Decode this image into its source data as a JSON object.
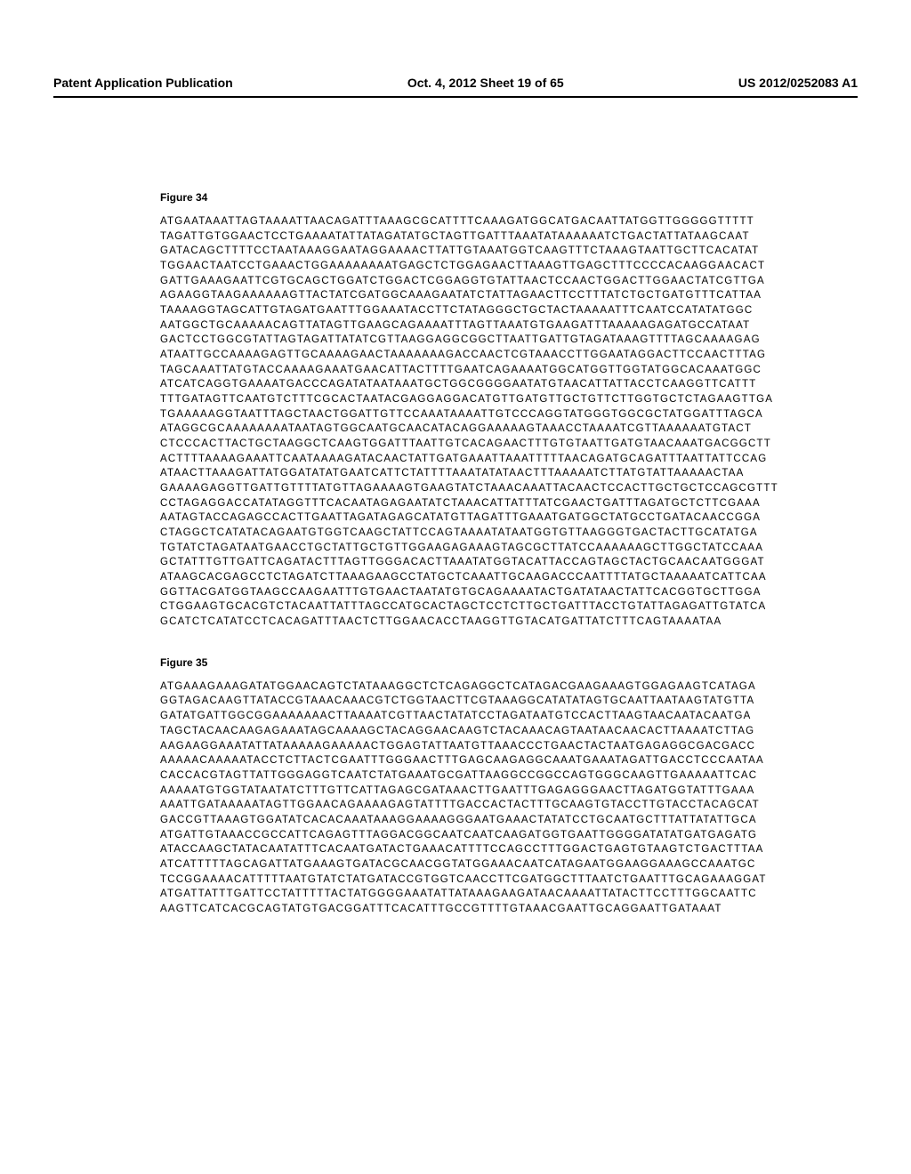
{
  "header": {
    "left": "Patent Application Publication",
    "center": "Oct. 4, 2012   Sheet 19 of 65",
    "right": "US 2012/0252083 A1"
  },
  "figure34": {
    "label": "Figure 34",
    "sequence": [
      "ATGAATAAATTAGTAAAATTAACAGATTTAAAGCGCATTTTCAAAGATGGCATGACAATTATGGTTGGGGGTTTTT",
      "TAGATTGTGGAACTCCTGAAAATATTATAGATATGCTAGTTGATTTAAATATAAAAAATCTGACTATTATAAGCAAT",
      "GATACAGCTTTTCCTAATAAAGGAATAGGAAAACTTATTGTAAATGGTCAAGTTTCTAAAGTAATTGCTTCACATAT",
      "TGGAACTAATCCTGAAACTGGAAAAAAAATGAGCTCTGGAGAACTTAAAGTTGAGCTTTCCCCACAAGGAACACT",
      "GATTGAAAGAATTCGTGCAGCTGGATCTGGACTCGGAGGTGTATTAACTCCAACTGGACTTGGAACTATCGTTGA",
      "AGAAGGTAAGAAAAAAGTTACTATCGATGGCAAAGAATATCTATTAGAACTTCCTTTATCTGCTGATGTTTCATTAA",
      "TAAAAGGTAGCATTGTAGATGAATTTGGAAATACCTTCTATAGGGCTGCTACTAAAAATTTCAATCCATATATGGC",
      "AATGGCTGCAAAAACAGTTATAGTTGAAGCAGAAAATTTAGTTAAATGTGAAGATTTAAAAAGAGATGCCATAAT",
      "GACTCCTGGCGTATTAGTAGATTATATCGTTAAGGAGGCGGCTTAATTGATTGTAGATAAAGTTTTAGCAAAAGAG",
      "ATAATTGCCAAAAGAGTTGCAAAAGAACTAAAAAAAGACCAACTCGTAAACCTTGGAATAGGACTTCCAACTTTAG",
      "TAGCAAATTATGTACCAAAAGAAATGAACATTACTTTTGAATCAGAAAATGGCATGGTTGGTATGGCACAAATGGC",
      "ATCATCAGGTGAAAATGACCCAGATATAATAAATGCTGGCGGGGAATATGTAACATTATTACCTCAAGGTTCATTT",
      "TTTGATAGTTCAATGTCTTTCGCACTAATACGAGGAGGACATGTTGATGTTGCTGTTCTTGGTGCTCTAGAAGTTGA",
      "TGAAAAAGGTAATTTAGCTAACTGGATTGTTCCAAATAAAATTGTCCCAGGTATGGGTGGCGCTATGGATTTAGCA",
      "ATAGGCGCAAAAAAAATAATAGTGGCAATGCAACATACAGGAAAAAGTAAACCTAAAATCGTTAAAAAATGTACT",
      "CTCCCACTTACTGCTAAGGCTCAAGTGGATTTAATTGTCACAGAACTTTGTGTAATTGATGTAACAAATGACGGCTT",
      "ACTTTTAAAAGAAATTCAATAAAAGATACAACTATTGATGAAATTAAATTTTTAACAGATGCAGATTTAATTATTCCAG",
      "ATAACTTAAAGATTATGGATATATGAATCATTCTATTTTAAATATATAACTTTAAAAATCTTATGTATTAAAAACTAA",
      "GAAAAGAGGTTGATTGTTTTATGTTAGAAAAGTGAAGTATCTAAACAAATTACAACTCCACTTGCTGCTCCAGCGTTT",
      "CCTAGAGGACCATATAGGTTTCACAATAGAGAATATCTAAACATTATTTATCGAACTGATTTAGATGCTCTTCGAAA",
      "AATAGTACCAGAGCCACTTGAATTAGATAGAGCATATGTTAGATTTGAAATGATGGCTATGCCTGATACAACCGGA",
      "CTAGGCTCATATACAGAATGTGGTCAAGCTATTCCAGTAAAATATAATGGTGTTAAGGGTGACTACTTGCATATGA",
      "TGTATCTAGATAATGAACCTGCTATTGCTGTTGGAAGAGAAAGTAGCGCTTATCCAAAAAAGCTTGGCTATCCAAA",
      "GCTATTTGTTGATTCAGATACTTTAGTTGGGACACTTAAATATGGTACATTACCAGTAGCTACTGCAACAATGGGAT",
      "ATAAGCACGAGCCTCTAGATCTTAAAGAAGCCTATGCTCAAATTGCAAGACCCAATTTTATGCTAAAAATCATTCAA",
      "GGTTACGATGGTAAGCCAAGAATTTGTGAACTAATATGTGCAGAAAATACTGATATAACTATTCACGGTGCTTGGA",
      "CTGGAAGTGCACGTCTACAATTATTTAGCCATGCACTAGCTCCTCTTGCTGATTTACCTGTATTAGAGATTGTATCA",
      "GCATCTCATATCCTCACAGATTTAACTCTTGGAACACCTAAGGTTGTACATGATTATCTTTCAGTAAAATAA"
    ]
  },
  "figure35": {
    "label": "Figure 35",
    "sequence": [
      "ATGAAAGAAAGATATGGAACAGTCTATAAAGGCTCTCAGAGGCTCATAGACGAAGAAAGTGGAGAAGTCATAGA",
      "GGTAGACAAGTTATACCGTAAACAAACGTCTGGTAACTTCGTAAAGGCATATATAGTGCAATTAATAAGTATGTTA",
      "GATATGATTGGCGGAAAAAAACTTAAAATCGTTAACTATATCCTAGATAATGTCCACTTAAGTAACAATACAATGA",
      "TAGCTACAACAAGAGAAATAGCAAAAGCTACAGGAACAAGTCTACAAACAGTAATAACAACACTTAAAATCTTAG",
      "AAGAAGGAAATATTATAAAAAGAAAAACTGGAGTATTAATGTTAAACCCTGAACTACTAATGAGAGGCGACGACC",
      "AAAAACAAAAATACCTCTTACTCGAATTTGGGAACTTTGAGCAAGAGGCAAATGAAATAGATTGACCTCCCAATAA",
      "CACCACGTAGTTATTGGGAGGTCAATCTATGAAATGCGATTAAGGCCGGCCAGTGGGCAAGTTGAAAAATTCAC",
      "AAAAATGTGGTATAATATCTTTGTTCATTAGAGCGATAAACTTGAATTTGAGAGGGAACTTAGATGGTATTTGAAA",
      "AAATTGATAAAAATAGTTGGAACAGAAAAGAGTATTTTGACCACTACTTTGCAAGTGTACCTTGTACCTACAGCAT",
      "GACCGTTAAAGTGGATATCACACAAATAAAGGAAAAGGGAATGAAACTATATCCTGCAATGCTTTATTATATTGCA",
      "ATGATTGTAAACCGCCATTCAGAGTTTAGGACGGCAATCAATCAAGATGGTGAATTGGGGATATATGATGAGATG",
      "ATACCAAGCTATACAATATTTCACAATGATACTGAAACATTTTCCAGCCTTTGGACTGAGTGTAAGTCTGACTTTAA",
      "ATCATTTTTAGCAGATTATGAAAGTGATACGCAACGGTATGGAAACAATCATAGAATGGAAGGAAAGCCAAATGC",
      "TCCGGAAAACATTTTTAATGTATCTATGATACCGTGGTCAACCTTCGATGGCTTTAATCTGAATTTGCAGAAAGGAT",
      "ATGATTATTTGATTCCTATTTTTACTATGGGGAAATATTATAAAGAAGATAACAAAATTATACTTCCTTTGGCAATTC",
      "AAGTTCATCACGCAGTATGTGACGGATTTCACATTTGCCGTTTTGTAAACGAATTGCAGGAATTGATAAAT"
    ]
  }
}
